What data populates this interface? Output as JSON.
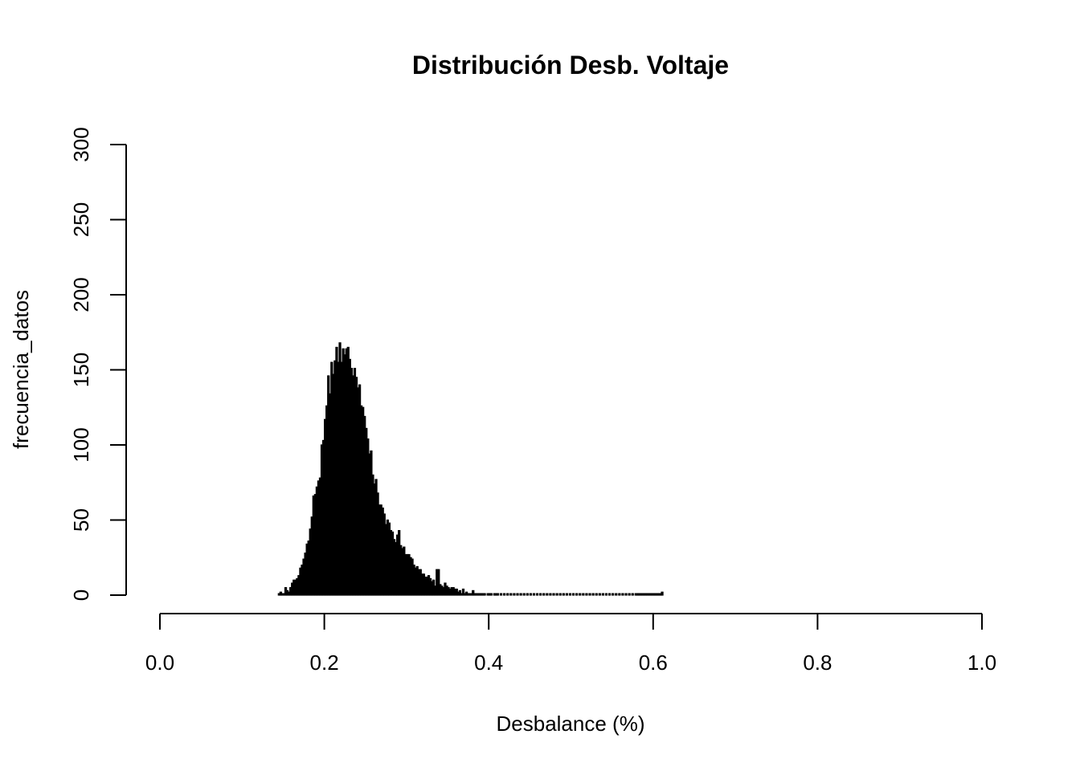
{
  "chart_data": {
    "type": "bar",
    "title": "Distribución Desb. Voltaje",
    "xlabel": "Desbalance (%)",
    "ylabel": "frecuencia_datos",
    "xlim": [
      0.0,
      1.0
    ],
    "ylim": [
      0,
      300
    ],
    "x_ticks": [
      "0.0",
      "0.2",
      "0.4",
      "0.6",
      "0.8",
      "1.0"
    ],
    "y_ticks": [
      "0",
      "50",
      "100",
      "150",
      "200",
      "250",
      "300"
    ],
    "bar_color": "#000000",
    "bin_width": 0.002,
    "bin_start": 0.144,
    "values": [
      1,
      2,
      1,
      1,
      5,
      3,
      2,
      5,
      8,
      10,
      10,
      11,
      13,
      18,
      20,
      24,
      28,
      34,
      36,
      44,
      52,
      66,
      67,
      72,
      76,
      78,
      100,
      103,
      117,
      126,
      146,
      134,
      155,
      147,
      156,
      165,
      155,
      168,
      155,
      164,
      160,
      164,
      165,
      157,
      151,
      146,
      151,
      145,
      138,
      140,
      126,
      125,
      119,
      111,
      104,
      94,
      96,
      80,
      74,
      77,
      68,
      60,
      60,
      58,
      54,
      47,
      50,
      48,
      43,
      42,
      37,
      35,
      40,
      43,
      33,
      31,
      32,
      27,
      27,
      27,
      25,
      24,
      20,
      18,
      19,
      17,
      17,
      14,
      14,
      12,
      12,
      13,
      11,
      9,
      10,
      6,
      17,
      17,
      7,
      6,
      5,
      8,
      6,
      5,
      4,
      5,
      5,
      4,
      4,
      2,
      3,
      1,
      4,
      1,
      2,
      1,
      1,
      1,
      3,
      1,
      1,
      1,
      1,
      1,
      1,
      1,
      0,
      1,
      1,
      1,
      0,
      1,
      1,
      1,
      0,
      1,
      0,
      1,
      0,
      1,
      0,
      1,
      0,
      1,
      0,
      1,
      0,
      1,
      0,
      1,
      0,
      1,
      0,
      1,
      0,
      1,
      0,
      1,
      0,
      1,
      0,
      1,
      0,
      1,
      0,
      1,
      0,
      1,
      0,
      1,
      0,
      1,
      0,
      1,
      0,
      1,
      0,
      1,
      0,
      1,
      0,
      1,
      0,
      1,
      0,
      1,
      0,
      1,
      0,
      1,
      0,
      1,
      0,
      1,
      0,
      1,
      0,
      1,
      0,
      1,
      0,
      1,
      0,
      1,
      0,
      1,
      0,
      1,
      0,
      1,
      0,
      1,
      0,
      1,
      0,
      1,
      0,
      1,
      1,
      1,
      1,
      1,
      1,
      1,
      1,
      1,
      1,
      1,
      1,
      1,
      1,
      1,
      1,
      2
    ]
  }
}
